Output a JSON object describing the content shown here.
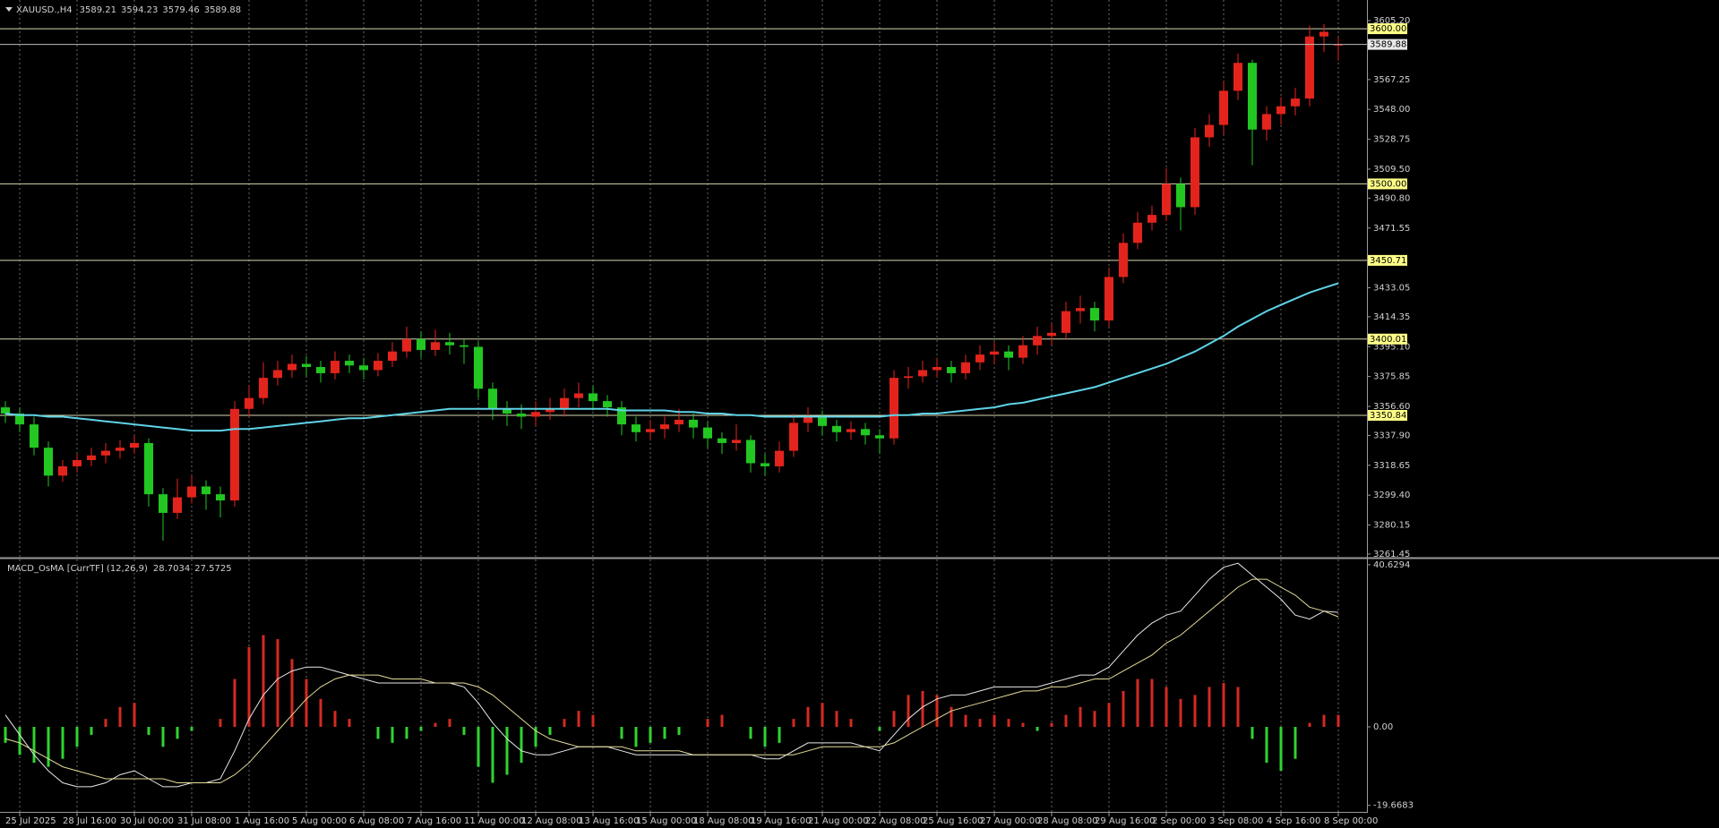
{
  "chart_data": [
    {
      "type": "candlestick",
      "symbol": "XAUUSD.,H4",
      "up_color": "#e3241c",
      "down_color": "#22c722",
      "ma_color": "#5fd3e6",
      "xlim": [
        0,
        95
      ],
      "xticks": [
        {
          "value": 1,
          "label": "25 Jul 2025"
        },
        {
          "value": 5,
          "label": "28 Jul 16:00"
        },
        {
          "value": 9,
          "label": "30 Jul 00:00"
        },
        {
          "value": 13,
          "label": "31 Jul 08:00"
        },
        {
          "value": 17,
          "label": "1 Aug 16:00"
        },
        {
          "value": 21,
          "label": "5 Aug 00:00"
        },
        {
          "value": 25,
          "label": "6 Aug 08:00"
        },
        {
          "value": 29,
          "label": "7 Aug 16:00"
        },
        {
          "value": 33,
          "label": "11 Aug 00:00"
        },
        {
          "value": 37,
          "label": "12 Aug 08:00"
        },
        {
          "value": 41,
          "label": "13 Aug 16:00"
        },
        {
          "value": 45,
          "label": "15 Aug 00:00"
        },
        {
          "value": 49,
          "label": "18 Aug 08:00"
        },
        {
          "value": 53,
          "label": "19 Aug 16:00"
        },
        {
          "value": 57,
          "label": "21 Aug 00:00"
        },
        {
          "value": 61,
          "label": "22 Aug 08:00"
        },
        {
          "value": 65,
          "label": "25 Aug 16:00"
        },
        {
          "value": 69,
          "label": "27 Aug 00:00"
        },
        {
          "value": 73,
          "label": "28 Aug 08:00"
        },
        {
          "value": 77,
          "label": "29 Aug 16:00"
        },
        {
          "value": 81,
          "label": "2 Sep 00:00"
        },
        {
          "value": 85,
          "label": "3 Sep 08:00"
        },
        {
          "value": 89,
          "label": "4 Sep 16:00"
        },
        {
          "value": 93,
          "label": "8 Sep 00:00"
        }
      ],
      "ylim": [
        3259.7,
        3616.2
      ],
      "yticks": [
        {
          "value": 3605.2,
          "label": "3605.20"
        },
        {
          "value": 3567.25,
          "label": "3567.25"
        },
        {
          "value": 3548,
          "label": "3548.00"
        },
        {
          "value": 3528.75,
          "label": "3528.75"
        },
        {
          "value": 3509.5,
          "label": "3509.50"
        },
        {
          "value": 3490.8,
          "label": "3490.80"
        },
        {
          "value": 3471.55,
          "label": "3471.55"
        },
        {
          "value": 3433.05,
          "label": "3433.05"
        },
        {
          "value": 3414.35,
          "label": "3414.35"
        },
        {
          "value": 3395.1,
          "label": "3395.10"
        },
        {
          "value": 3375.85,
          "label": "3375.85"
        },
        {
          "value": 3356.6,
          "label": "3356.60"
        },
        {
          "value": 3337.9,
          "label": "3337.90"
        },
        {
          "value": 3318.65,
          "label": "3318.65"
        },
        {
          "value": 3299.4,
          "label": "3299.40"
        },
        {
          "value": 3280.15,
          "label": "3280.15"
        },
        {
          "value": 3261.45,
          "label": "3261.45"
        }
      ],
      "levels": [
        {
          "value": 3600,
          "label": "3600.00"
        },
        {
          "value": 3500,
          "label": "3500.00"
        },
        {
          "value": 3450.71,
          "label": "3450.71"
        },
        {
          "value": 3400.01,
          "label": "3400.01"
        },
        {
          "value": 3350.84,
          "label": "3350.84"
        }
      ],
      "open": [
        3356,
        3352,
        3345,
        3330,
        3312,
        3318,
        3322,
        3325,
        3328,
        3330,
        3333,
        3300,
        3288,
        3298,
        3305,
        3300,
        3296,
        3355,
        3362,
        3375,
        3380,
        3384,
        3382,
        3378,
        3386,
        3383,
        3380,
        3386,
        3392,
        3400,
        3393,
        3398,
        3396,
        3395,
        3368,
        3355,
        3352,
        3350,
        3353,
        3355,
        3362,
        3365,
        3360,
        3356,
        3345,
        3340,
        3342,
        3345,
        3348,
        3343,
        3336,
        3333,
        3335,
        3320,
        3318,
        3328,
        3346,
        3350,
        3344,
        3340,
        3342,
        3338,
        3336,
        3375,
        3376,
        3380,
        3382,
        3378,
        3385,
        3390,
        3392,
        3388,
        3396,
        3402,
        3404,
        3418,
        3420,
        3412,
        3440,
        3462,
        3475,
        3480,
        3500,
        3485,
        3530,
        3538,
        3560,
        3578,
        3535,
        3545,
        3550,
        3555,
        3595,
        3589.21
      ],
      "high": [
        3360,
        3356,
        3350,
        3334,
        3322,
        3326,
        3330,
        3333,
        3335,
        3338,
        3336,
        3304,
        3310,
        3312,
        3309,
        3305,
        3360,
        3370,
        3385,
        3386,
        3390,
        3389,
        3386,
        3392,
        3390,
        3388,
        3391,
        3398,
        3408,
        3405,
        3406,
        3404,
        3400,
        3398,
        3372,
        3360,
        3358,
        3360,
        3362,
        3368,
        3372,
        3370,
        3364,
        3360,
        3350,
        3348,
        3350,
        3355,
        3352,
        3347,
        3340,
        3345,
        3338,
        3326,
        3334,
        3352,
        3356,
        3354,
        3348,
        3347,
        3346,
        3342,
        3380,
        3382,
        3386,
        3388,
        3386,
        3390,
        3396,
        3398,
        3396,
        3402,
        3408,
        3410,
        3424,
        3428,
        3424,
        3446,
        3468,
        3482,
        3486,
        3510,
        3504,
        3536,
        3545,
        3566,
        3584,
        3580,
        3550,
        3556,
        3562,
        3602,
        3603,
        3594.23
      ],
      "low": [
        3346,
        3340,
        3325,
        3305,
        3308,
        3314,
        3318,
        3320,
        3323,
        3326,
        3292,
        3270,
        3284,
        3294,
        3290,
        3285,
        3292,
        3350,
        3358,
        3370,
        3375,
        3376,
        3372,
        3374,
        3378,
        3374,
        3376,
        3382,
        3388,
        3388,
        3389,
        3390,
        3384,
        3362,
        3348,
        3344,
        3342,
        3344,
        3348,
        3350,
        3356,
        3354,
        3350,
        3338,
        3334,
        3335,
        3336,
        3340,
        3336,
        3330,
        3326,
        3328,
        3314,
        3312,
        3314,
        3324,
        3340,
        3338,
        3334,
        3335,
        3332,
        3326,
        3332,
        3368,
        3372,
        3375,
        3372,
        3374,
        3380,
        3384,
        3380,
        3384,
        3390,
        3396,
        3400,
        3410,
        3405,
        3408,
        3436,
        3458,
        3470,
        3476,
        3470,
        3480,
        3524,
        3532,
        3554,
        3512,
        3528,
        3538,
        3544,
        3550,
        3585,
        3579.46
      ],
      "close": [
        3352,
        3345,
        3330,
        3312,
        3318,
        3322,
        3325,
        3328,
        3330,
        3333,
        3300,
        3288,
        3298,
        3305,
        3300,
        3296,
        3355,
        3362,
        3375,
        3380,
        3384,
        3382,
        3378,
        3386,
        3383,
        3380,
        3386,
        3392,
        3400,
        3393,
        3398,
        3396,
        3395,
        3368,
        3355,
        3352,
        3350,
        3353,
        3355,
        3362,
        3365,
        3360,
        3356,
        3345,
        3340,
        3342,
        3345,
        3348,
        3343,
        3336,
        3333,
        3335,
        3320,
        3318,
        3328,
        3346,
        3350,
        3344,
        3340,
        3342,
        3338,
        3336,
        3375,
        3376,
        3380,
        3382,
        3378,
        3385,
        3390,
        3392,
        3388,
        3396,
        3402,
        3404,
        3418,
        3420,
        3412,
        3440,
        3462,
        3475,
        3480,
        3500,
        3485,
        3530,
        3538,
        3560,
        3578,
        3535,
        3545,
        3550,
        3555,
        3595,
        3598,
        3589.88
      ],
      "ma": [
        3352,
        3351,
        3351,
        3350,
        3350,
        3349,
        3348,
        3347,
        3346,
        3345,
        3344,
        3343,
        3342,
        3341,
        3341,
        3341,
        3342,
        3342,
        3343,
        3344,
        3345,
        3346,
        3347,
        3348,
        3349,
        3349,
        3350,
        3351,
        3352,
        3353,
        3354,
        3355,
        3355,
        3355,
        3355,
        3355,
        3355,
        3355,
        3355,
        3355,
        3355,
        3355,
        3355,
        3354,
        3354,
        3354,
        3354,
        3353,
        3353,
        3352,
        3352,
        3351,
        3351,
        3350,
        3350,
        3350,
        3350,
        3350,
        3350,
        3350,
        3350,
        3350,
        3351,
        3351,
        3352,
        3352,
        3353,
        3354,
        3355,
        3356,
        3358,
        3359,
        3361,
        3363,
        3365,
        3367,
        3369,
        3372,
        3375,
        3378,
        3381,
        3384,
        3388,
        3392,
        3397,
        3402,
        3408,
        3413,
        3418,
        3422,
        3426,
        3430,
        3433,
        3436
      ]
    },
    {
      "type": "macd",
      "title": "MACD_OsMA [CurrTF] (12,26,9)",
      "ylim": [
        -21.3,
        41.5
      ],
      "yticks": [
        {
          "value": 40.6294,
          "label": "40.6294"
        },
        {
          "value": 0,
          "label": "0.00"
        },
        {
          "value": -19.6683,
          "label": "-19.6683"
        }
      ],
      "histogram": {
        "pos_color": "#d42a22",
        "neg_color": "#2fd42f",
        "values": [
          -4,
          -7,
          -9,
          -10,
          -8,
          -5,
          -2,
          2,
          5,
          6,
          -2,
          -5,
          -3,
          -1,
          0,
          2,
          12,
          20,
          23,
          22,
          17,
          12,
          7,
          4,
          2,
          0,
          -3,
          -4,
          -3,
          -1,
          1,
          2,
          -2,
          -10,
          -14,
          -12,
          -9,
          -5,
          -2,
          2,
          4,
          3,
          0,
          -3,
          -5,
          -4,
          -3,
          -2,
          0,
          2,
          3,
          0,
          -3,
          -5,
          -4,
          2,
          5,
          6,
          4,
          2,
          0,
          -1,
          4,
          8,
          9,
          8,
          5,
          3,
          2,
          3,
          2,
          1,
          -1,
          1,
          3,
          5,
          4,
          6,
          9,
          12,
          12,
          10,
          7,
          8,
          10,
          11,
          10,
          -3,
          -9,
          -11,
          -8,
          1,
          3,
          3
        ]
      },
      "series": [
        {
          "name": "MACD",
          "color": "#e8e8e8",
          "values": [
            3,
            -2,
            -7,
            -11,
            -14,
            -15,
            -15,
            -14,
            -12,
            -11,
            -13,
            -15,
            -15,
            -14,
            -14,
            -13,
            -6,
            2,
            8,
            12,
            14,
            15,
            15,
            14,
            13,
            12,
            11,
            11,
            11,
            11,
            11,
            11,
            10,
            6,
            1,
            -3,
            -6,
            -7,
            -7,
            -6,
            -5,
            -5,
            -5,
            -6,
            -7,
            -7,
            -7,
            -7,
            -7,
            -7,
            -7,
            -7,
            -7,
            -8,
            -8,
            -6,
            -4,
            -4,
            -4,
            -4,
            -5,
            -6,
            -2,
            2,
            5,
            7,
            8,
            8,
            9,
            10,
            10,
            10,
            10,
            11,
            12,
            13,
            13,
            15,
            19,
            23,
            26,
            28,
            29,
            33,
            37,
            40,
            41,
            38,
            35,
            32,
            28,
            27,
            29,
            28.7034
          ]
        },
        {
          "name": "Signal",
          "color": "#e6dc9a",
          "values": [
            -3,
            -4,
            -6,
            -8,
            -10,
            -11,
            -12,
            -13,
            -13,
            -13,
            -13,
            -13,
            -14,
            -14,
            -14,
            -14,
            -12,
            -9,
            -5,
            -1,
            3,
            7,
            10,
            12,
            13,
            13,
            13,
            12,
            12,
            12,
            11,
            11,
            11,
            10,
            8,
            5,
            2,
            -1,
            -3,
            -4,
            -5,
            -5,
            -5,
            -5,
            -6,
            -6,
            -6,
            -6,
            -7,
            -7,
            -7,
            -7,
            -7,
            -7,
            -7,
            -7,
            -6,
            -5,
            -5,
            -5,
            -5,
            -5,
            -4,
            -2,
            0,
            2,
            4,
            5,
            6,
            7,
            8,
            9,
            9,
            10,
            10,
            11,
            12,
            12,
            14,
            16,
            18,
            21,
            23,
            26,
            29,
            32,
            35,
            37,
            37,
            35,
            33,
            30,
            29,
            27.5725
          ]
        }
      ]
    }
  ]
}
